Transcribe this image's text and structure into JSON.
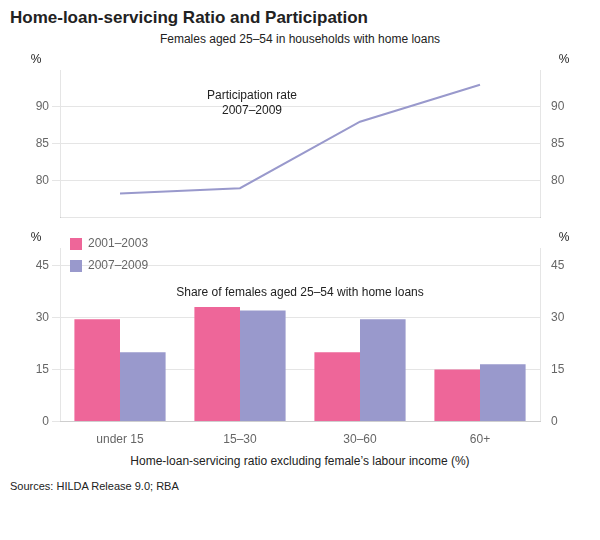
{
  "chart_data": [
    {
      "type": "line",
      "title": "Home-loan-servicing Ratio and Participation",
      "subtitle": "Females aged 25–54 in households with home loans",
      "categories": [
        null,
        null,
        null,
        null
      ],
      "values": [
        78.3,
        79.0,
        88.0,
        93.0
      ],
      "color": "#9999cc",
      "ylabel": "%",
      "y2label": "%",
      "ylim": [
        75,
        95
      ],
      "yticks": [
        80,
        85,
        90
      ],
      "y2lim": [
        75,
        95
      ],
      "y2ticks": [
        80,
        85,
        90
      ],
      "annotation": "Participation rate\n2007–2009",
      "grid": true,
      "tick_labels": "y"
    },
    {
      "type": "bar",
      "categories": [
        "under 15",
        "15–30",
        "30–60",
        "60+"
      ],
      "series": [
        {
          "name": "2001–2003",
          "color": "#ee6699",
          "values": [
            29.5,
            33.0,
            20.0,
            15.0
          ]
        },
        {
          "name": "2007–2009",
          "color": "#9999cc",
          "values": [
            20.0,
            32.0,
            29.5,
            16.5
          ]
        }
      ],
      "xlabel": "Home-loan-servicing ratio excluding female’s labour income (%)",
      "ylabel": "%",
      "y2label": "%",
      "ylim": [
        0,
        50
      ],
      "yticks": [
        0,
        15,
        30,
        45
      ],
      "y2lim": [
        0,
        50
      ],
      "y2ticks": [
        0,
        15,
        30,
        45
      ],
      "annotation": "Share of females aged 25–54 with home loans",
      "legend": "upper left",
      "grid": true,
      "source": "Sources: HILDA Release 9.0; RBA"
    }
  ]
}
